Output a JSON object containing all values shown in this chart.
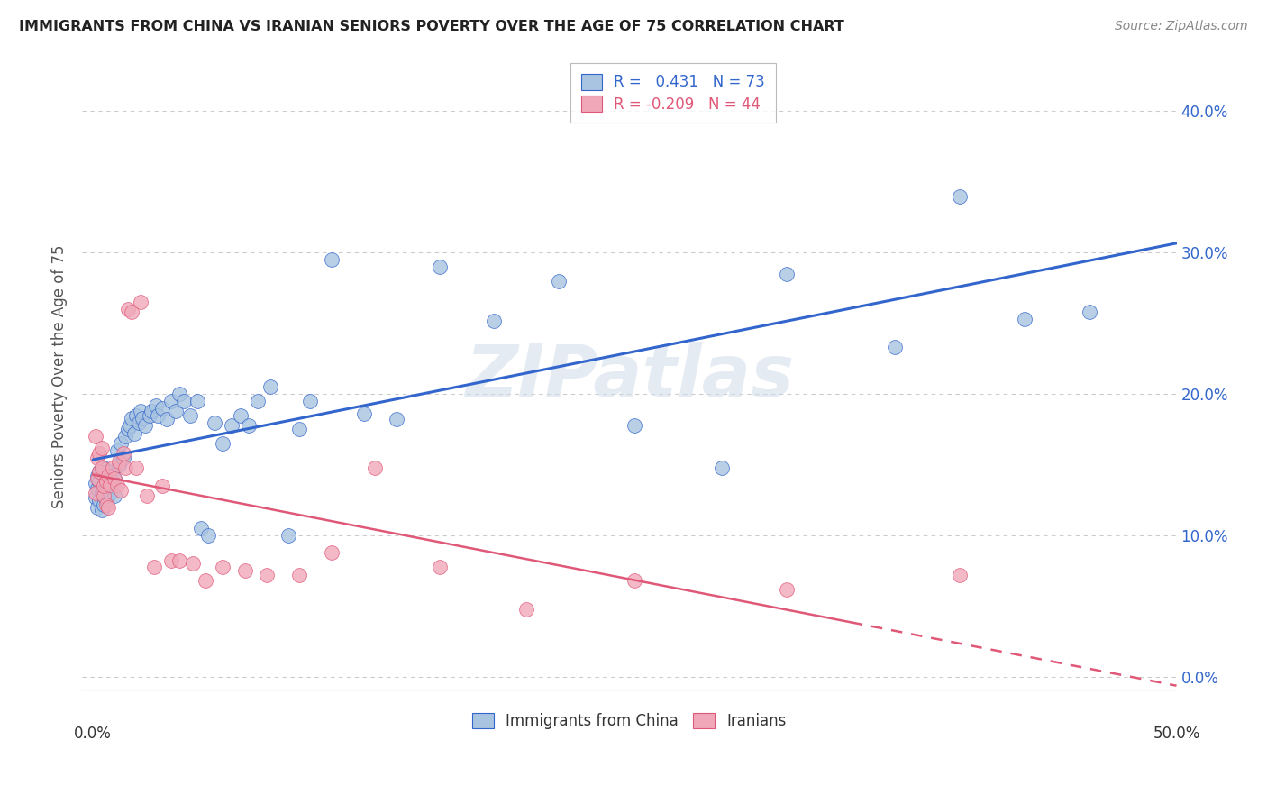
{
  "title": "IMMIGRANTS FROM CHINA VS IRANIAN SENIORS POVERTY OVER THE AGE OF 75 CORRELATION CHART",
  "source": "Source: ZipAtlas.com",
  "ylabel": "Seniors Poverty Over the Age of 75",
  "legend_label1": "Immigrants from China",
  "legend_label2": "Iranians",
  "r1": 0.431,
  "n1": 73,
  "r2": -0.209,
  "n2": 44,
  "color1": "#a8c4e0",
  "color2": "#f0a8b8",
  "line_color1": "#3366cc",
  "line_color2": "#e05878",
  "background_color": "#ffffff",
  "grid_color": "#cccccc",
  "china_x": [
    0.001,
    0.001,
    0.002,
    0.002,
    0.002,
    0.003,
    0.003,
    0.003,
    0.004,
    0.004,
    0.005,
    0.005,
    0.005,
    0.006,
    0.006,
    0.007,
    0.007,
    0.008,
    0.008,
    0.009,
    0.01,
    0.01,
    0.011,
    0.012,
    0.013,
    0.014,
    0.015,
    0.016,
    0.017,
    0.018,
    0.019,
    0.02,
    0.021,
    0.022,
    0.023,
    0.024,
    0.026,
    0.027,
    0.029,
    0.03,
    0.032,
    0.034,
    0.036,
    0.038,
    0.04,
    0.042,
    0.045,
    0.048,
    0.05,
    0.053,
    0.056,
    0.06,
    0.064,
    0.068,
    0.072,
    0.076,
    0.082,
    0.09,
    0.095,
    0.1,
    0.11,
    0.125,
    0.14,
    0.16,
    0.185,
    0.215,
    0.25,
    0.29,
    0.32,
    0.37,
    0.4,
    0.43,
    0.46
  ],
  "china_y": [
    0.127,
    0.137,
    0.12,
    0.133,
    0.142,
    0.125,
    0.138,
    0.145,
    0.118,
    0.13,
    0.122,
    0.132,
    0.148,
    0.125,
    0.14,
    0.128,
    0.145,
    0.13,
    0.142,
    0.135,
    0.128,
    0.14,
    0.16,
    0.15,
    0.165,
    0.155,
    0.17,
    0.175,
    0.178,
    0.183,
    0.172,
    0.185,
    0.18,
    0.188,
    0.183,
    0.178,
    0.185,
    0.188,
    0.192,
    0.185,
    0.19,
    0.182,
    0.195,
    0.188,
    0.2,
    0.195,
    0.185,
    0.195,
    0.105,
    0.1,
    0.18,
    0.165,
    0.178,
    0.185,
    0.178,
    0.195,
    0.205,
    0.1,
    0.175,
    0.195,
    0.295,
    0.186,
    0.182,
    0.29,
    0.252,
    0.28,
    0.178,
    0.148,
    0.285,
    0.233,
    0.34,
    0.253,
    0.258
  ],
  "iran_x": [
    0.001,
    0.001,
    0.002,
    0.002,
    0.003,
    0.003,
    0.004,
    0.004,
    0.005,
    0.005,
    0.006,
    0.006,
    0.007,
    0.007,
    0.008,
    0.009,
    0.01,
    0.011,
    0.012,
    0.013,
    0.014,
    0.015,
    0.016,
    0.018,
    0.02,
    0.022,
    0.025,
    0.028,
    0.032,
    0.036,
    0.04,
    0.046,
    0.052,
    0.06,
    0.07,
    0.08,
    0.095,
    0.11,
    0.13,
    0.16,
    0.2,
    0.25,
    0.32,
    0.4
  ],
  "iran_y": [
    0.17,
    0.13,
    0.155,
    0.14,
    0.158,
    0.145,
    0.162,
    0.148,
    0.128,
    0.135,
    0.122,
    0.138,
    0.12,
    0.142,
    0.136,
    0.148,
    0.14,
    0.136,
    0.152,
    0.132,
    0.158,
    0.148,
    0.26,
    0.258,
    0.148,
    0.265,
    0.128,
    0.078,
    0.135,
    0.082,
    0.082,
    0.08,
    0.068,
    0.078,
    0.075,
    0.072,
    0.072,
    0.088,
    0.148,
    0.078,
    0.048,
    0.068,
    0.062,
    0.072
  ],
  "xlim": [
    -0.005,
    0.5
  ],
  "ylim": [
    -0.01,
    0.435
  ],
  "yticks": [
    0.0,
    0.1,
    0.2,
    0.3,
    0.4
  ],
  "yticklabels": [
    "0.0%",
    "10.0%",
    "20.0%",
    "30.0%",
    "40.0%"
  ],
  "xtick_left_label": "0.0%",
  "xtick_right_label": "50.0%"
}
